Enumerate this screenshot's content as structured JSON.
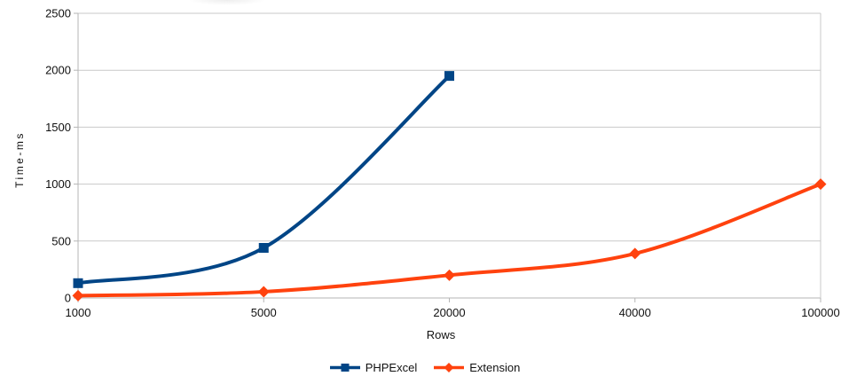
{
  "chart_data": {
    "type": "line",
    "title": "",
    "xlabel": "Rows",
    "ylabel": "Time-ms",
    "categories": [
      "1000",
      "5000",
      "20000",
      "40000",
      "100000"
    ],
    "series": [
      {
        "name": "PHPExcel",
        "color": "#004586",
        "marker": "square",
        "values": [
          130,
          440,
          1950,
          null,
          null
        ]
      },
      {
        "name": "Extension",
        "color": "#FF420E",
        "marker": "diamond",
        "values": [
          20,
          55,
          200,
          390,
          1000
        ]
      }
    ],
    "ylim": [
      0,
      2500
    ],
    "yticks": [
      "0",
      "500",
      "1000",
      "1500",
      "2000",
      "2500"
    ],
    "grid": true,
    "smooth": true,
    "legend_position": "bottom"
  },
  "colors": {
    "background": "#FFFFFF",
    "gridline": "#C9C9C9",
    "axis": "#B5B5B5",
    "text": "#111111"
  }
}
